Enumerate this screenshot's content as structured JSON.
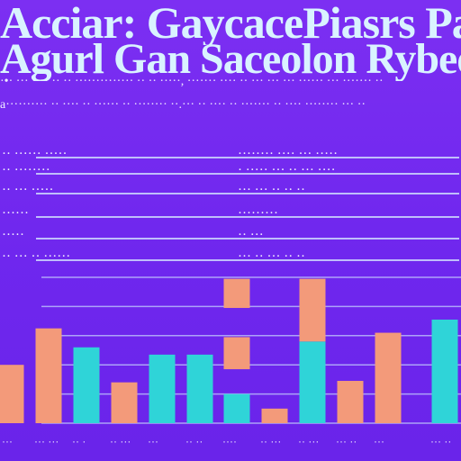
{
  "header": {
    "title_line1": "Acciar: GaycacePiasrs Pas",
    "title_line2": "Agurl Gan Saceolon Rybee",
    "subtitle_line1": "·•· ··· ···· ·· ·· ·············· ·· ·· ·····, ······· ···· ·· ··· ··· ··· ······ ··· ······· ··",
    "subtitle_line2": "a·········· ·· ···· ·· ······ ·· ········ ··.··· ·· ···· ·· ······· ·· ···· ········ ··· ··"
  },
  "legend_rows": [
    {
      "left": "·· ······ ·····",
      "right": "········ ···· ··· ·····"
    },
    {
      "left": "·· ········",
      "right": "· ····· ··· ·· ··· ····"
    },
    {
      "left": "·· ··· ·····",
      "right": "··· ··· ·· ·· ··"
    },
    {
      "left": "······",
      "right": "·········"
    },
    {
      "left": "·····",
      "right": "·· ···"
    },
    {
      "left": "·· ··· ·· ······",
      "right": "··· ·· ··· ·· ··"
    }
  ],
  "chart_data": {
    "type": "bar",
    "categories": [
      "···",
      "··· ···",
      "·· ·",
      "·· ···",
      "···",
      "·· ··",
      "····",
      "·· ···",
      "·· ···",
      "··· ··",
      "···",
      "··· ··"
    ],
    "ylim": [
      0,
      100
    ],
    "grid": true,
    "segments": [
      {
        "x": 0,
        "bottom": 0,
        "top": 40,
        "color": "#f39a7a"
      },
      {
        "x": 1,
        "bottom": 0,
        "top": 65,
        "color": "#f39a7a"
      },
      {
        "x": 2,
        "bottom": 0,
        "top": 52,
        "color": "#2fd4d8"
      },
      {
        "x": 3,
        "bottom": 0,
        "top": 28,
        "color": "#f39a7a"
      },
      {
        "x": 4,
        "bottom": 0,
        "top": 47,
        "color": "#2fd4d8"
      },
      {
        "x": 5,
        "bottom": 0,
        "top": 47,
        "color": "#2fd4d8"
      },
      {
        "x": 6,
        "bottom": 0,
        "top": 20,
        "color": "#2fd4d8"
      },
      {
        "x": 6,
        "bottom": 37,
        "top": 59,
        "color": "#f39a7a"
      },
      {
        "x": 6,
        "bottom": 79,
        "top": 99,
        "color": "#f39a7a"
      },
      {
        "x": 7,
        "bottom": 0,
        "top": 10,
        "color": "#f39a7a"
      },
      {
        "x": 8,
        "bottom": 0,
        "top": 56,
        "color": "#2fd4d8"
      },
      {
        "x": 8,
        "bottom": 56,
        "top": 99,
        "color": "#f39a7a"
      },
      {
        "x": 9,
        "bottom": 0,
        "top": 29,
        "color": "#f39a7a"
      },
      {
        "x": 10,
        "bottom": 0,
        "top": 62,
        "color": "#f39a7a"
      },
      {
        "x": 11,
        "bottom": 0,
        "top": 35,
        "color": "#2fd4d8"
      },
      {
        "x": 11,
        "bottom": 0,
        "top": 71,
        "color": "#2fd4d8"
      }
    ]
  },
  "colors": {
    "background": "#7c2ff2",
    "bar_orange": "#f39a7a",
    "bar_cyan": "#2fd4d8",
    "grid": "#cfe6ff"
  }
}
